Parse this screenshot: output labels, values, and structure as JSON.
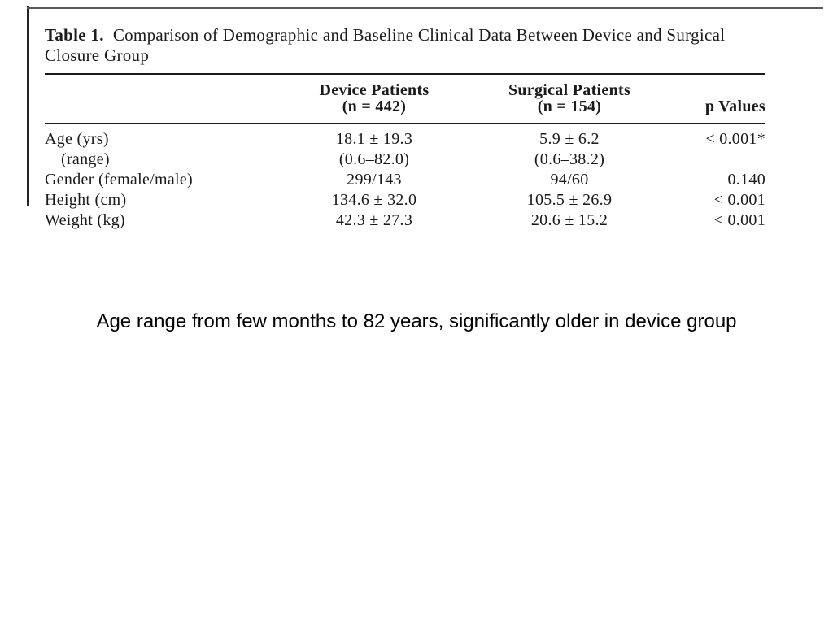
{
  "figure": {
    "title": {
      "label": "Table 1.",
      "part1": "Comparison of Demographic and Baseline Clinical Data Between Device and Surgical",
      "part2": "Closure Group"
    },
    "header": {
      "device_line1": "Device Patients",
      "device_line2": "(n = 442)",
      "surgical_line1": "Surgical Patients",
      "surgical_line2": "(n = 154)",
      "p": "p Values"
    },
    "rows": [
      {
        "label": "Age (yrs)",
        "device": "18.1 ± 19.3",
        "surgical": "5.9 ± 6.2",
        "p": "< 0.001*"
      },
      {
        "label": "(range)",
        "device": "(0.6–82.0)",
        "surgical": "(0.6–38.2)",
        "p": ""
      },
      {
        "label": "Gender (female/male)",
        "device": "299/143",
        "surgical": "94/60",
        "p": "0.140"
      },
      {
        "label": "Height (cm)",
        "device": "134.6 ± 32.0",
        "surgical": "105.5 ± 26.9",
        "p": "< 0.001"
      },
      {
        "label": "Weight (kg)",
        "device": "42.3 ± 27.3",
        "surgical": "20.6 ± 15.2",
        "p": "< 0.001"
      }
    ]
  },
  "caption": "Age range from few months to 82 years, significantly older in device group",
  "colors": {
    "ink": "#1b1b1b",
    "rule": "#1a1a1a",
    "caption_text": "#000000",
    "background": "#ffffff"
  }
}
